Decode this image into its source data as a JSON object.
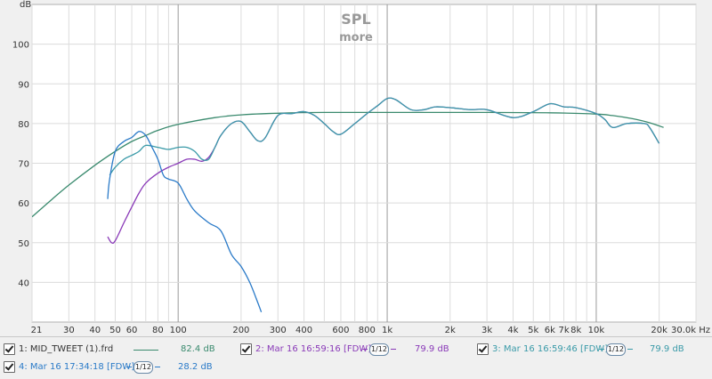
{
  "chart_data": {
    "type": "line",
    "title": "SPL",
    "subtitle": "more",
    "yunit": "dB",
    "xunit": "Hz",
    "xscale": "log",
    "xlim": [
      20,
      30000
    ],
    "ylim": [
      30,
      110
    ],
    "xticks": [
      {
        "v": 21,
        "label": "21"
      },
      {
        "v": 30,
        "label": "30"
      },
      {
        "v": 40,
        "label": "40"
      },
      {
        "v": 50,
        "label": "50"
      },
      {
        "v": 60,
        "label": "60"
      },
      {
        "v": 80,
        "label": "80"
      },
      {
        "v": 100,
        "label": "100"
      },
      {
        "v": 200,
        "label": "200"
      },
      {
        "v": 300,
        "label": "300"
      },
      {
        "v": 400,
        "label": "400"
      },
      {
        "v": 600,
        "label": "600"
      },
      {
        "v": 800,
        "label": "800"
      },
      {
        "v": 1000,
        "label": "1k"
      },
      {
        "v": 2000,
        "label": "2k"
      },
      {
        "v": 3000,
        "label": "3k"
      },
      {
        "v": 4000,
        "label": "4k"
      },
      {
        "v": 5000,
        "label": "5k"
      },
      {
        "v": 6000,
        "label": "6k"
      },
      {
        "v": 7000,
        "label": "7k"
      },
      {
        "v": 8000,
        "label": "8k"
      },
      {
        "v": 10000,
        "label": "10k"
      },
      {
        "v": 20000,
        "label": "20k"
      },
      {
        "v": 30000,
        "label": "30.0k Hz"
      }
    ],
    "yticks": [
      40,
      50,
      60,
      70,
      80,
      90,
      100
    ],
    "grid": true,
    "series": [
      {
        "name": "1: MID_TWEET (1).frd",
        "color": "#3a8a6e",
        "points": [
          [
            20,
            56.5
          ],
          [
            25,
            61
          ],
          [
            30,
            64.5
          ],
          [
            40,
            69.5
          ],
          [
            50,
            73
          ],
          [
            60,
            75.5
          ],
          [
            70,
            77
          ],
          [
            80,
            78.3
          ],
          [
            100,
            79.8
          ],
          [
            150,
            81.5
          ],
          [
            200,
            82.2
          ],
          [
            300,
            82.6
          ],
          [
            500,
            82.8
          ],
          [
            1000,
            82.8
          ],
          [
            3000,
            82.8
          ],
          [
            6000,
            82.7
          ],
          [
            10000,
            82.4
          ],
          [
            12000,
            82
          ],
          [
            15000,
            81.2
          ],
          [
            18000,
            80.2
          ],
          [
            21000,
            79
          ]
        ]
      },
      {
        "name": "2: Mar 16 16:59:16 [FDW]",
        "color": "#8a3ab8",
        "points": [
          [
            46,
            51.5
          ],
          [
            48,
            50
          ],
          [
            50,
            50.5
          ],
          [
            55,
            55
          ],
          [
            60,
            59
          ],
          [
            65,
            62.5
          ],
          [
            70,
            65
          ],
          [
            80,
            67.5
          ],
          [
            90,
            69
          ],
          [
            100,
            70
          ],
          [
            110,
            71
          ],
          [
            120,
            71
          ],
          [
            130,
            70.5
          ],
          [
            140,
            71.5
          ],
          [
            150,
            74
          ],
          [
            160,
            77
          ],
          [
            180,
            80
          ],
          [
            200,
            80.5
          ],
          [
            220,
            78
          ],
          [
            240,
            75.7
          ],
          [
            260,
            76.3
          ],
          [
            300,
            82
          ],
          [
            350,
            82.5
          ],
          [
            400,
            83
          ],
          [
            450,
            82
          ],
          [
            500,
            80
          ],
          [
            550,
            78
          ],
          [
            600,
            77.3
          ],
          [
            700,
            80
          ],
          [
            800,
            82.5
          ],
          [
            900,
            84.5
          ],
          [
            1000,
            86.3
          ],
          [
            1100,
            86
          ],
          [
            1300,
            83.5
          ],
          [
            1500,
            83.5
          ],
          [
            1700,
            84.2
          ],
          [
            2000,
            84
          ],
          [
            2500,
            83.5
          ],
          [
            3000,
            83.5
          ],
          [
            4000,
            81.5
          ],
          [
            5000,
            83
          ],
          [
            6000,
            85
          ],
          [
            7000,
            84.2
          ],
          [
            8000,
            84
          ],
          [
            10000,
            82.5
          ],
          [
            11000,
            81
          ],
          [
            12000,
            79
          ],
          [
            14000,
            80
          ],
          [
            17000,
            80
          ],
          [
            18000,
            79
          ],
          [
            20000,
            75
          ]
        ]
      },
      {
        "name": "3: Mar 16 16:59:46 [FDW]",
        "color": "#3a9aa8",
        "points": [
          [
            47,
            67
          ],
          [
            50,
            69
          ],
          [
            55,
            71
          ],
          [
            60,
            72
          ],
          [
            65,
            73
          ],
          [
            70,
            74.5
          ],
          [
            80,
            74
          ],
          [
            90,
            73.5
          ],
          [
            100,
            74
          ],
          [
            110,
            74
          ],
          [
            120,
            73
          ],
          [
            130,
            71
          ],
          [
            140,
            71
          ],
          [
            150,
            74
          ],
          [
            160,
            77
          ],
          [
            180,
            80
          ],
          [
            200,
            80.5
          ],
          [
            220,
            78
          ],
          [
            240,
            75.7
          ],
          [
            260,
            76.3
          ],
          [
            300,
            82
          ],
          [
            350,
            82.5
          ],
          [
            400,
            83
          ],
          [
            450,
            82
          ],
          [
            500,
            80
          ],
          [
            550,
            78
          ],
          [
            600,
            77.3
          ],
          [
            700,
            80
          ],
          [
            800,
            82.5
          ],
          [
            900,
            84.5
          ],
          [
            1000,
            86.3
          ],
          [
            1100,
            86
          ],
          [
            1300,
            83.5
          ],
          [
            1500,
            83.5
          ],
          [
            1700,
            84.2
          ],
          [
            2000,
            84
          ],
          [
            2500,
            83.5
          ],
          [
            3000,
            83.5
          ],
          [
            4000,
            81.5
          ],
          [
            5000,
            83
          ],
          [
            6000,
            85
          ],
          [
            7000,
            84.2
          ],
          [
            8000,
            84
          ],
          [
            10000,
            82.5
          ],
          [
            11000,
            81
          ],
          [
            12000,
            79
          ],
          [
            14000,
            80
          ],
          [
            17000,
            80
          ],
          [
            18000,
            79
          ],
          [
            20000,
            75
          ]
        ]
      },
      {
        "name": "4: Mar 16 17:34:18 [FDW]",
        "color": "#2a7ac8",
        "points": [
          [
            46,
            61
          ],
          [
            47,
            66
          ],
          [
            50,
            73
          ],
          [
            55,
            75.5
          ],
          [
            60,
            76.5
          ],
          [
            65,
            78
          ],
          [
            70,
            77
          ],
          [
            75,
            74
          ],
          [
            80,
            71
          ],
          [
            85,
            67
          ],
          [
            90,
            66
          ],
          [
            100,
            65
          ],
          [
            110,
            61
          ],
          [
            120,
            58
          ],
          [
            140,
            55
          ],
          [
            160,
            53
          ],
          [
            180,
            47
          ],
          [
            200,
            44
          ],
          [
            220,
            40
          ],
          [
            240,
            35
          ],
          [
            250,
            32.5
          ]
        ]
      }
    ]
  },
  "legend": {
    "items": [
      {
        "checkbox_label": "1: MID_TWEET (1).frd",
        "value": "82.4 dB",
        "color": "#3a8a6e"
      },
      {
        "checkbox_label": "2: Mar 16 16:59:16 [FDW]",
        "smoothing": "1/12",
        "value": "79.9 dB",
        "color": "#8a3ab8"
      },
      {
        "checkbox_label": "3: Mar 16 16:59:46 [FDW]",
        "smoothing": "1/12",
        "value": "79.9 dB",
        "color": "#3a9aa8"
      },
      {
        "checkbox_label": "4: Mar 16 17:34:18 [FDW]",
        "smoothing": "1/12",
        "value": "28.2 dB",
        "color": "#2a7ac8"
      }
    ]
  }
}
